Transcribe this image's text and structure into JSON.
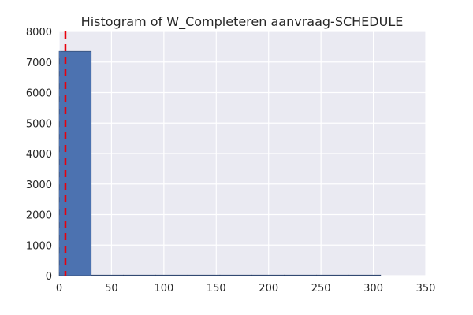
{
  "chart_data": {
    "type": "bar",
    "title": "Histogram of W_Completeren aanvraag-SCHEDULE",
    "xlabel": "",
    "ylabel": "",
    "xlim": [
      0,
      350
    ],
    "ylim": [
      0,
      8000
    ],
    "x_ticks": [
      0,
      50,
      100,
      150,
      200,
      250,
      300,
      350
    ],
    "y_ticks": [
      0,
      1000,
      2000,
      3000,
      4000,
      5000,
      6000,
      7000,
      8000
    ],
    "bins": [
      {
        "x0": 0,
        "x1": 30.7,
        "count": 7350
      },
      {
        "x0": 30.7,
        "x1": 61.4,
        "count": 2
      },
      {
        "x0": 61.4,
        "x1": 92.1,
        "count": 1
      },
      {
        "x0": 92.1,
        "x1": 122.8,
        "count": 1
      },
      {
        "x0": 122.8,
        "x1": 153.5,
        "count": 1
      },
      {
        "x0": 153.5,
        "x1": 184.2,
        "count": 1
      },
      {
        "x0": 184.2,
        "x1": 214.9,
        "count": 1
      },
      {
        "x0": 214.9,
        "x1": 245.6,
        "count": 1
      },
      {
        "x0": 245.6,
        "x1": 276.3,
        "count": 1
      },
      {
        "x0": 276.3,
        "x1": 307.0,
        "count": 1
      }
    ],
    "reference_line_x": 6,
    "reference_line_color": "#e8000b",
    "bar_color": "#4c72b0",
    "background_color": "#eaeaf2",
    "grid": true,
    "grid_color": "#ffffff"
  }
}
